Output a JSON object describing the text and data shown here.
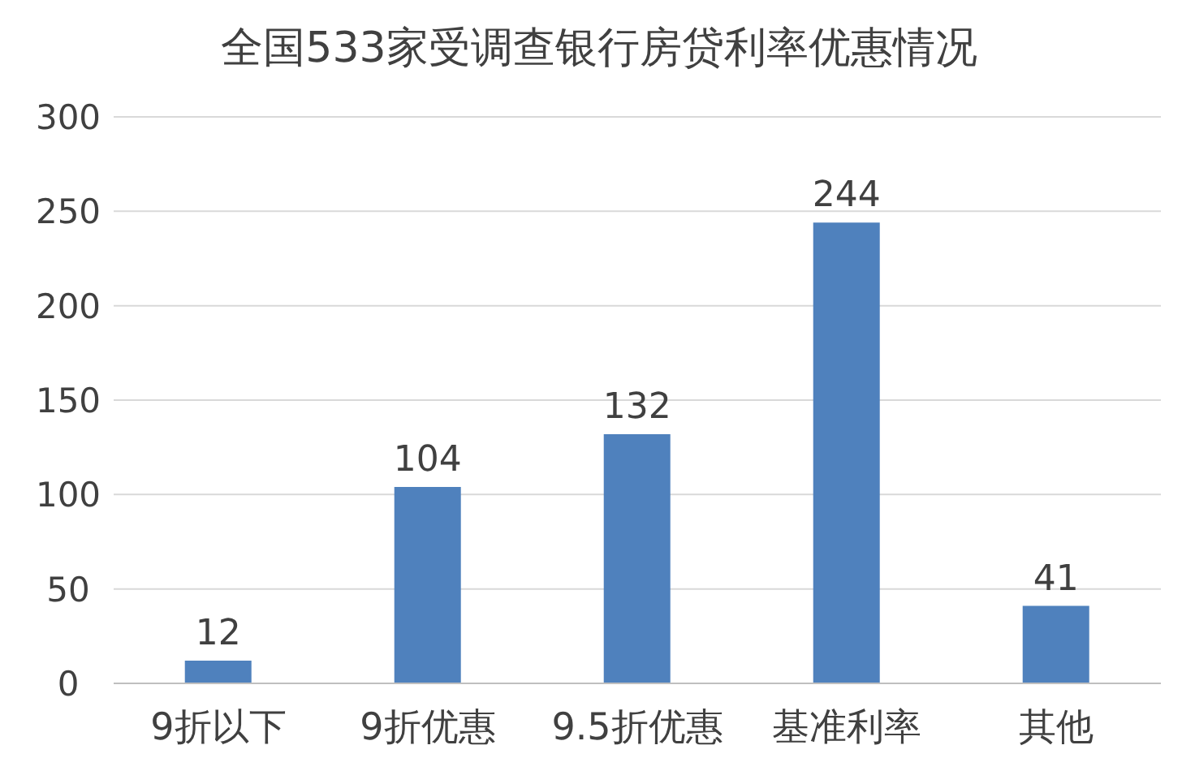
{
  "chart_data": {
    "type": "bar",
    "title": "全国533家受调查银行房贷利率优惠情况",
    "categories": [
      "9折以下",
      "9折优惠",
      "9.5折优惠",
      "基准利率",
      "其他"
    ],
    "values": [
      12,
      104,
      132,
      244,
      41
    ],
    "color": "#4f81bd",
    "ylim": [
      0,
      300
    ],
    "yticks": [
      0,
      50,
      100,
      150,
      200,
      250,
      300
    ],
    "grid": "y",
    "data_labels": true
  }
}
